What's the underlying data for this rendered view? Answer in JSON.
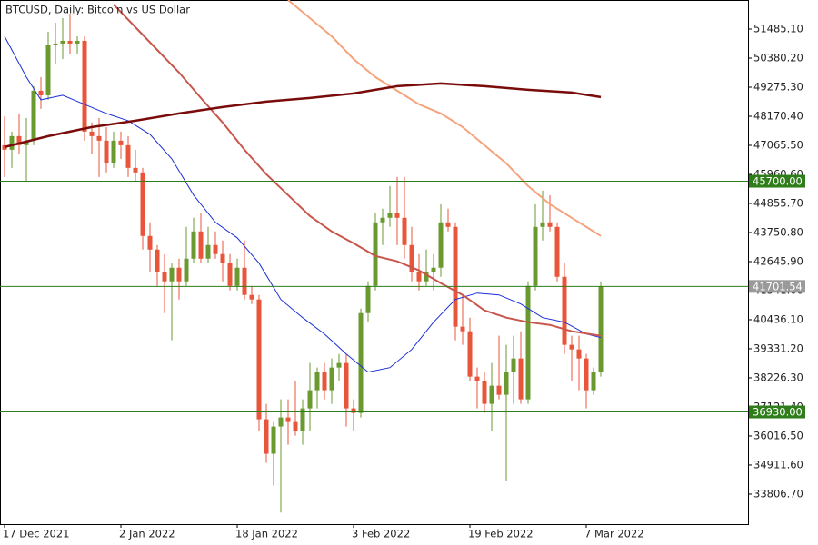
{
  "chart_data": {
    "type": "candlestick",
    "title": "BTCUSD, Daily:  Bitcoin vs US Dollar",
    "up_color": "#6a9a2f",
    "down_color": "#e8553a",
    "open": [
      47070,
      46897,
      47415,
      47070,
      47242,
      49140,
      48967,
      50865,
      50934,
      51037,
      50934,
      51037,
      47587,
      47415,
      47242,
      46380,
      47242,
      47070,
      46207,
      46035,
      43620,
      43102,
      42240,
      41895,
      42412,
      41895,
      42757,
      43792,
      42757,
      43275,
      42930,
      42585,
      41722,
      42412,
      41377,
      41205,
      36651,
      35340,
      36375,
      36720,
      36547,
      36202,
      37065,
      37755,
      38445,
      37755,
      38617,
      38790,
      37065,
      36892,
      40687,
      41722,
      44137,
      44310,
      44482,
      44310,
      43275,
      42240,
      41895,
      42240,
      42412,
      44137,
      43965,
      40170,
      39997,
      38272,
      38100,
      37237,
      37927,
      37582,
      38445,
      38962,
      37410,
      41722,
      43965,
      44137,
      43965,
      42067,
      39480,
      39307,
      38962,
      37755,
      38445
    ],
    "high": [
      48174,
      47587,
      48277,
      48105,
      49312,
      49657,
      51382,
      51727,
      51900,
      52072,
      51210,
      51210,
      47932,
      48105,
      47760,
      47587,
      47587,
      47415,
      46897,
      46207,
      44137,
      43275,
      42930,
      42585,
      42757,
      43965,
      44310,
      44482,
      43965,
      43792,
      43447,
      42930,
      42757,
      43447,
      41722,
      41377,
      37237,
      36547,
      37410,
      37410,
      38100,
      37410,
      38790,
      38617,
      38790,
      38962,
      39135,
      39135,
      37410,
      40860,
      41895,
      44482,
      44655,
      45517,
      45862,
      45862,
      43965,
      42930,
      43102,
      42930,
      44827,
      44655,
      44137,
      41377,
      40515,
      38617,
      38445,
      38790,
      39825,
      39480,
      39825,
      39997,
      41895,
      44827,
      45345,
      45172,
      44137,
      42585,
      39825,
      39825,
      39135,
      38617,
      41895
    ],
    "low": [
      45862,
      46207,
      46725,
      45690,
      47070,
      48450,
      48795,
      50175,
      50347,
      50520,
      50520,
      47242,
      46725,
      45862,
      46035,
      46207,
      46552,
      45862,
      45690,
      43102,
      42240,
      41722,
      40687,
      39652,
      41205,
      41722,
      42585,
      42585,
      42585,
      42757,
      41895,
      41550,
      41550,
      41205,
      41032,
      36202,
      34995,
      34132,
      33105,
      35685,
      36030,
      35685,
      36202,
      37065,
      37410,
      37237,
      38100,
      36375,
      36202,
      36720,
      40342,
      41550,
      43275,
      43965,
      43275,
      42757,
      41895,
      41550,
      41722,
      41550,
      42067,
      43792,
      39652,
      39480,
      38100,
      37065,
      36892,
      36202,
      37410,
      34305,
      37237,
      37237,
      37237,
      41550,
      43447,
      43792,
      41895,
      39135,
      38100,
      37755,
      37065,
      37582,
      38272
    ],
    "close": [
      46897,
      47415,
      47070,
      47242,
      49140,
      48967,
      50865,
      50934,
      51037,
      50934,
      51037,
      47587,
      47415,
      47242,
      46380,
      47242,
      47070,
      46207,
      46035,
      43620,
      43102,
      42240,
      41895,
      42412,
      41895,
      42757,
      43792,
      42757,
      43275,
      42930,
      42585,
      41722,
      42412,
      41377,
      41205,
      36651,
      35340,
      36375,
      36720,
      36547,
      36202,
      37065,
      37755,
      38445,
      37755,
      38617,
      38790,
      37065,
      36892,
      40687,
      41722,
      44137,
      44310,
      44482,
      44310,
      43275,
      42240,
      41895,
      42240,
      42412,
      44137,
      43965,
      40170,
      39997,
      38272,
      38100,
      37237,
      37927,
      37582,
      38445,
      38962,
      37410,
      41722,
      43965,
      44137,
      43965,
      42067,
      39480,
      39307,
      38962,
      37755,
      38445,
      41701.54
    ],
    "lines": [
      {
        "color": "#1a2ed8",
        "width": 1,
        "x": [
          0,
          3,
          5,
          8,
          11,
          14,
          17,
          20,
          23,
          26,
          29,
          32,
          35,
          38,
          41,
          44,
          47,
          50,
          53,
          56,
          59,
          62,
          65,
          68,
          71,
          74,
          77,
          80,
          82
        ],
        "values": [
          51210,
          49657,
          48795,
          48967,
          48622,
          48277,
          48000,
          47484,
          46552,
          45172,
          44137,
          43551,
          42585,
          41205,
          40515,
          39894,
          39135,
          38445,
          38617,
          39307,
          40342,
          41205,
          41448,
          41377,
          41032,
          40515,
          40342,
          39894,
          39756
        ]
      },
      {
        "color": "#c9564b",
        "width": 2,
        "x": [
          15,
          18,
          21,
          24,
          27,
          30,
          33,
          36,
          39,
          42,
          45,
          48,
          51,
          54,
          57,
          60,
          63,
          66,
          69,
          72,
          75,
          78,
          82
        ],
        "values": [
          52417,
          51555,
          50692,
          49830,
          48864,
          47932,
          46897,
          45966,
          45172,
          44379,
          43792,
          43344,
          42861,
          42654,
          42309,
          41826,
          41377,
          40791,
          40515,
          40342,
          40239,
          39997,
          39825
        ]
      },
      {
        "color": "#f5a37c",
        "width": 2,
        "x": [
          39,
          42,
          45,
          48,
          51,
          54,
          57,
          60,
          63,
          66,
          69,
          72,
          75,
          78,
          82
        ],
        "values": [
          52590,
          51900,
          51210,
          50347,
          49657,
          49140,
          48622,
          48277,
          47760,
          47070,
          46380,
          45517,
          44827,
          44310,
          43620
        ]
      },
      {
        "color": "#7a0b0b",
        "width": 2.5,
        "x": [
          0,
          6,
          12,
          18,
          24,
          30,
          36,
          42,
          48,
          54,
          60,
          66,
          72,
          78,
          82
        ],
        "values": [
          47001,
          47415,
          47760,
          48000,
          48277,
          48519,
          48726,
          48864,
          49036,
          49312,
          49416,
          49312,
          49174,
          49071,
          48898
        ]
      }
    ],
    "hlines": [
      {
        "value": 45700,
        "label": "45700.00",
        "color": "#2e7d1a",
        "box": "#2e7d1a"
      },
      {
        "value": 41701.54,
        "color": "#2e7d1a",
        "box": "#9a9a9a"
      },
      {
        "value": 36930,
        "label": "36930.00",
        "color": "#2e7d1a",
        "box": "#2e7d1a"
      }
    ],
    "xlim": [
      0,
      103
    ],
    "xticks": [
      {
        "value": 0,
        "label": "17 Dec 2021"
      },
      {
        "value": 16,
        "label": "2 Jan 2022"
      },
      {
        "value": 32,
        "label": "18 Jan 2022"
      },
      {
        "value": 48,
        "label": "3 Feb 2022"
      },
      {
        "value": 64,
        "label": "19 Feb 2022"
      },
      {
        "value": 80,
        "label": "7 Mar 2022"
      }
    ],
    "ylim": [
      32666,
      52590
    ],
    "yticks": [
      {
        "value": 51485.1,
        "label": "51485.10"
      },
      {
        "value": 50380.2,
        "label": "50380.20"
      },
      {
        "value": 49275.3,
        "label": "49275.30"
      },
      {
        "value": 48170.4,
        "label": "48170.40"
      },
      {
        "value": 47065.5,
        "label": "47065.50"
      },
      {
        "value": 45960.6,
        "label": "45960.60"
      },
      {
        "value": 44855.7,
        "label": "44855.70"
      },
      {
        "value": 43750.8,
        "label": "43750.80"
      },
      {
        "value": 42645.9,
        "label": "42645.90"
      },
      {
        "value": 41541,
        "label": "41541.00"
      },
      {
        "value": 40436.1,
        "label": "40436.10"
      },
      {
        "value": 39331.2,
        "label": "39331.20"
      },
      {
        "value": 38226.3,
        "label": "38226.30"
      },
      {
        "value": 37121.4,
        "label": "37121.40"
      },
      {
        "value": 36016.5,
        "label": "36016.50"
      },
      {
        "value": 34911.6,
        "label": "34911.60"
      },
      {
        "value": 33806.7,
        "label": "33806.70"
      }
    ]
  }
}
